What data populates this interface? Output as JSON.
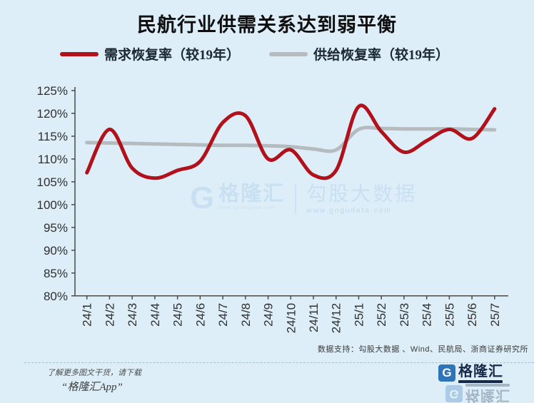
{
  "title": "民航行业供需关系达到弱平衡",
  "chart_data": {
    "type": "line",
    "categories": [
      "24/1",
      "24/2",
      "24/3",
      "24/4",
      "24/5",
      "24/6",
      "24/7",
      "24/8",
      "24/9",
      "24/10",
      "24/11",
      "24/12",
      "25/1",
      "25/2",
      "25/3",
      "25/4",
      "25/5",
      "25/6",
      "25/7"
    ],
    "series": [
      {
        "name": "需求恢复率（较19年）",
        "color": "#b0111a",
        "values": [
          107,
          116.5,
          108,
          105.8,
          107.5,
          109.5,
          118,
          119.5,
          110,
          112,
          106.5,
          107.5,
          121.5,
          116,
          111.5,
          114,
          116.5,
          114.5,
          121
        ]
      },
      {
        "name": "供给恢复率（较19年）",
        "color": "#b5bbbf",
        "values": [
          113.6,
          113.5,
          113.4,
          113.3,
          113.2,
          113.1,
          113.0,
          113.0,
          112.9,
          112.7,
          112.2,
          112.0,
          116.5,
          116.7,
          116.6,
          116.6,
          116.6,
          116.5,
          116.4
        ]
      }
    ],
    "title": "民航行业供需关系达到弱平衡",
    "xlabel": "",
    "ylabel": "",
    "ylim": [
      80,
      125
    ],
    "ytick_step": 5,
    "y_tick_labels": [
      "125%",
      "120%",
      "115%",
      "110%",
      "105%",
      "100%",
      "95%",
      "90%",
      "85%",
      "80%"
    ],
    "grid": false,
    "legend_position": "top",
    "line_style": "smooth"
  },
  "watermark": {
    "logo_letter": "G",
    "brand": "格隆汇",
    "brand_url": "www.gelonghui.com",
    "product": "勾股大数据",
    "product_url": "www.gogudata.com"
  },
  "source_note": "数据支持：勾股大数据 、Wind、民航局、浙商证券研究所",
  "footer": {
    "promo_line1": "了解更多图文干货，请下载",
    "promo_line2": "“格隆汇App”",
    "logo_letter": "G",
    "logo_text": "格隆汇"
  }
}
